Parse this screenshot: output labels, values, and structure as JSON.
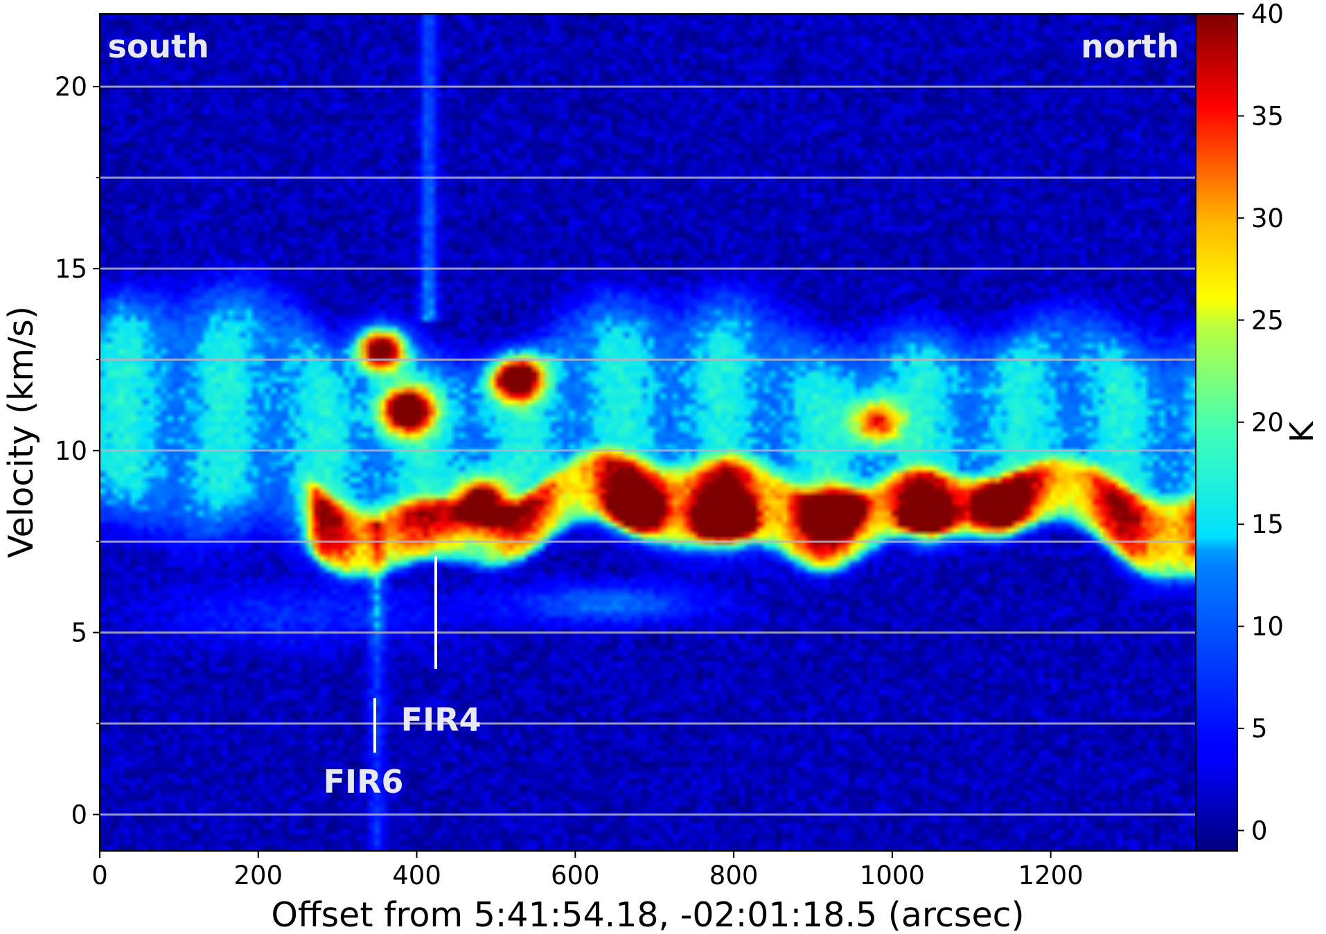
{
  "chart_data": {
    "type": "heatmap",
    "title": "",
    "xlabel": "Offset from 5:41:54.18, -02:01:18.5 (arcsec)",
    "ylabel": "Velocity (km/s)",
    "xlim": [
      0,
      1383
    ],
    "ylim": [
      -1,
      22
    ],
    "xticks": [
      0,
      200,
      400,
      600,
      800,
      1000,
      1200
    ],
    "yticks": [
      0,
      5,
      10,
      15,
      20
    ],
    "hlines": [
      0,
      2.5,
      5,
      7.5,
      10,
      12.5,
      15,
      17.5,
      20
    ],
    "colorbar": {
      "label": "K",
      "range": [
        -1,
        40
      ],
      "ticks": [
        0,
        5,
        10,
        15,
        20,
        25,
        30,
        35,
        40
      ],
      "colormap": "jet"
    },
    "annotations": [
      {
        "text": "south",
        "x": 10,
        "y": 20.8
      },
      {
        "text": "north",
        "x": 1362,
        "y": 20.8
      },
      {
        "text": "FIR4",
        "x": 380,
        "y": 2.3
      },
      {
        "text": "FIR6",
        "x": 282,
        "y": 0.6
      }
    ],
    "markers": [
      {
        "name": "FIR4",
        "x": 424,
        "y1": 4.0,
        "y2": 7.1
      },
      {
        "name": "FIR6",
        "x": 347,
        "y1": 1.7,
        "y2": 3.2
      }
    ],
    "intensity_features": [
      {
        "kind": "band",
        "desc": "main emission band",
        "x_range": [
          0,
          1383
        ],
        "v_center": 10.5,
        "v_halfwidth": 3.0,
        "peak": 16
      },
      {
        "kind": "band",
        "desc": "bright low-velocity band",
        "x_range": [
          280,
          1383
        ],
        "v_center": 8.3,
        "v_halfwidth": 1.0,
        "peak": 24
      },
      {
        "kind": "clump",
        "x": 355,
        "v": 12.8,
        "peak": 44
      },
      {
        "kind": "clump",
        "x": 387,
        "v": 11.1,
        "peak": 40
      },
      {
        "kind": "clump",
        "x": 525,
        "v": 12.0,
        "peak": 40
      },
      {
        "kind": "clump",
        "x": 480,
        "v": 8.6,
        "peak": 36
      },
      {
        "kind": "clump",
        "x": 680,
        "v": 8.4,
        "peak": 32
      },
      {
        "kind": "clump",
        "x": 790,
        "v": 8.1,
        "peak": 45
      },
      {
        "kind": "clump",
        "x": 930,
        "v": 8.4,
        "peak": 36
      },
      {
        "kind": "clump",
        "x": 1045,
        "v": 8.1,
        "peak": 40
      },
      {
        "kind": "clump",
        "x": 1128,
        "v": 8.4,
        "peak": 30
      },
      {
        "kind": "clump",
        "x": 980,
        "v": 10.8,
        "peak": 24
      },
      {
        "kind": "outflow",
        "x": 415,
        "v_range": [
          13.5,
          22
        ],
        "peak": 13
      },
      {
        "kind": "outflow",
        "x": 350,
        "v_range": [
          -1,
          8
        ],
        "peak": 10
      },
      {
        "kind": "lobe",
        "x": 640,
        "v": 5.8,
        "peak": 11
      },
      {
        "kind": "background",
        "level": 1.0
      }
    ]
  },
  "colors": {
    "line": "#b4b4c8",
    "annotation": "#e8e8f4",
    "marker": "#ffffff",
    "axis": "#000000"
  }
}
